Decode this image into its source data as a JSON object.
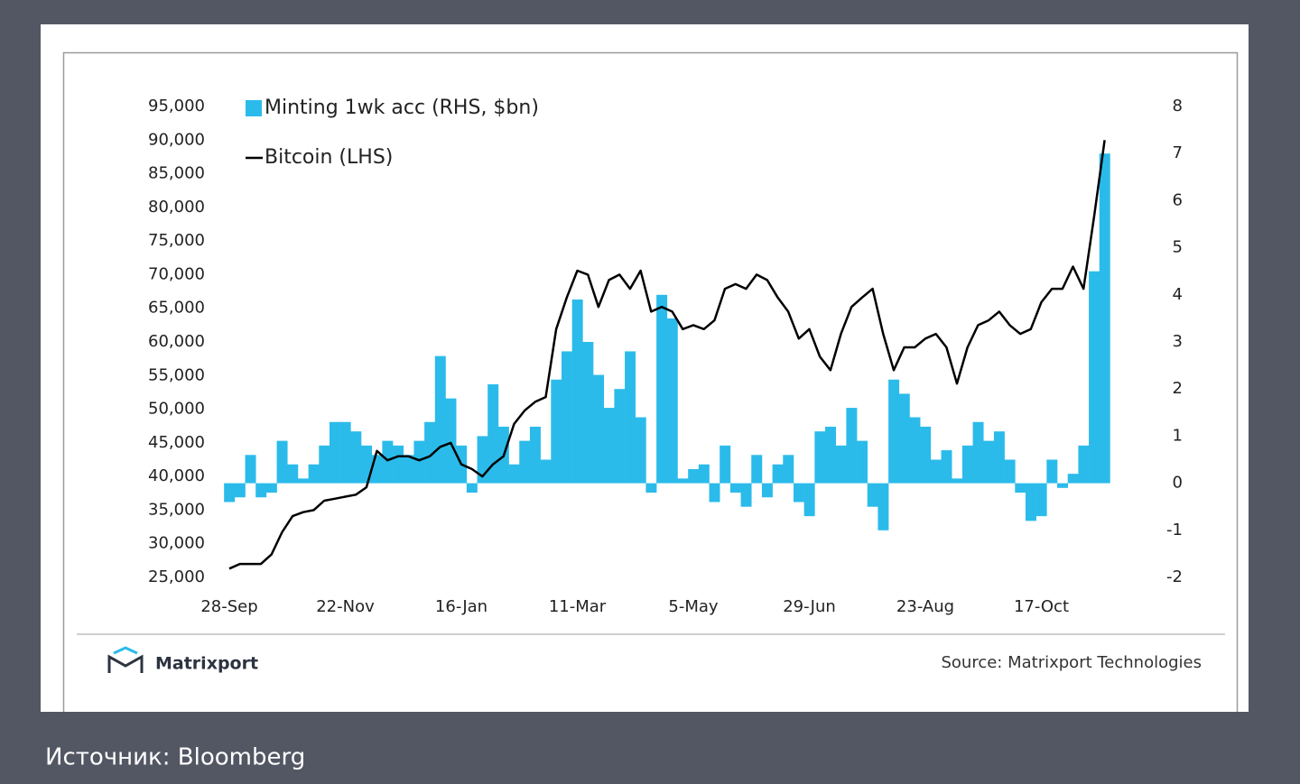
{
  "chart_data": {
    "type": "bar-line",
    "categories": [
      "28-Sep",
      null,
      null,
      null,
      null,
      null,
      null,
      null,
      null,
      null,
      null,
      "22-Nov",
      null,
      null,
      null,
      null,
      null,
      null,
      null,
      null,
      null,
      null,
      "16-Jan",
      null,
      null,
      null,
      null,
      null,
      null,
      null,
      null,
      null,
      null,
      "11-Mar",
      null,
      null,
      null,
      null,
      null,
      null,
      null,
      null,
      null,
      null,
      "5-May",
      null,
      null,
      null,
      null,
      null,
      null,
      null,
      null,
      null,
      null,
      "29-Jun",
      null,
      null,
      null,
      null,
      null,
      null,
      null,
      null,
      null,
      null,
      "23-Aug",
      null,
      null,
      null,
      null,
      null,
      null,
      null,
      null,
      null,
      null,
      "17-Oct",
      null,
      null,
      null,
      null,
      null,
      null
    ],
    "series": [
      {
        "name": "Minting 1wk acc (RHS, $bn)",
        "color": "#2bbbea",
        "axis": "y2",
        "values": [
          -0.4,
          -0.3,
          0.6,
          -0.3,
          -0.2,
          0.9,
          0.4,
          0.1,
          0.4,
          0.8,
          1.3,
          1.3,
          1.1,
          0.8,
          0.6,
          0.9,
          0.8,
          0.6,
          0.9,
          1.3,
          2.7,
          1.8,
          0.8,
          -0.2,
          1.0,
          2.1,
          1.2,
          0.4,
          0.9,
          1.2,
          0.5,
          2.2,
          2.8,
          3.9,
          3.0,
          2.3,
          1.6,
          2.0,
          2.8,
          1.4,
          -0.2,
          4.0,
          3.5,
          0.1,
          0.3,
          0.4,
          -0.4,
          0.8,
          -0.2,
          -0.5,
          0.6,
          -0.3,
          0.4,
          0.6,
          -0.4,
          -0.7,
          1.1,
          1.2,
          0.8,
          1.6,
          0.9,
          -0.5,
          -1.0,
          2.2,
          1.9,
          1.4,
          1.2,
          0.5,
          0.7,
          0.1,
          0.8,
          1.3,
          0.9,
          1.1,
          0.5,
          -0.2,
          -0.8,
          -0.7,
          0.5,
          -0.1,
          0.2,
          0.8,
          4.5,
          7.0
        ]
      },
      {
        "name": "Bitcoin (LHS)",
        "color": "#000000",
        "values": [
          26300,
          27000,
          27000,
          27000,
          28400,
          31700,
          34100,
          34700,
          35000,
          36400,
          36700,
          37000,
          37300,
          38400,
          43800,
          42400,
          43000,
          43000,
          42400,
          43000,
          44400,
          45000,
          41800,
          41100,
          40000,
          41800,
          43000,
          47800,
          49800,
          51100,
          51800,
          61900,
          66600,
          70600,
          70000,
          65200,
          69200,
          70000,
          67900,
          70600,
          64500,
          65200,
          64500,
          61900,
          62500,
          61900,
          63200,
          67900,
          68600,
          67900,
          70000,
          69200,
          66600,
          64500,
          60500,
          61900,
          57800,
          55800,
          61200,
          65200,
          66600,
          67900,
          61200,
          55800,
          59200,
          59200,
          60500,
          61200,
          59200,
          53800,
          59200,
          62500,
          63200,
          64500,
          62500,
          61200,
          61900,
          65900,
          67900,
          67900,
          71200,
          67900,
          78600,
          90000
        ]
      }
    ],
    "ylim": [
      25000,
      95000
    ],
    "yticks": [
      {
        "value": 25000,
        "label": "25,000"
      },
      {
        "value": 30000,
        "label": "30,000"
      },
      {
        "value": 35000,
        "label": "35,000"
      },
      {
        "value": 40000,
        "label": "40,000"
      },
      {
        "value": 45000,
        "label": "45,000"
      },
      {
        "value": 50000,
        "label": "50,000"
      },
      {
        "value": 55000,
        "label": "55,000"
      },
      {
        "value": 60000,
        "label": "60,000"
      },
      {
        "value": 65000,
        "label": "65,000"
      },
      {
        "value": 70000,
        "label": "70,000"
      },
      {
        "value": 75000,
        "label": "75,000"
      },
      {
        "value": 80000,
        "label": "80,000"
      },
      {
        "value": 85000,
        "label": "85,000"
      },
      {
        "value": 90000,
        "label": "90,000"
      },
      {
        "value": 95000,
        "label": "95,000"
      }
    ],
    "y2lim": [
      -2,
      8
    ],
    "y2ticks": [
      -2,
      -1,
      0,
      1,
      2,
      3,
      4,
      5,
      6,
      7,
      8
    ],
    "grid": false,
    "brand": "Matrixport",
    "source": "Source: Matrixport Technologies"
  },
  "caption": "Источник: Bloomberg"
}
